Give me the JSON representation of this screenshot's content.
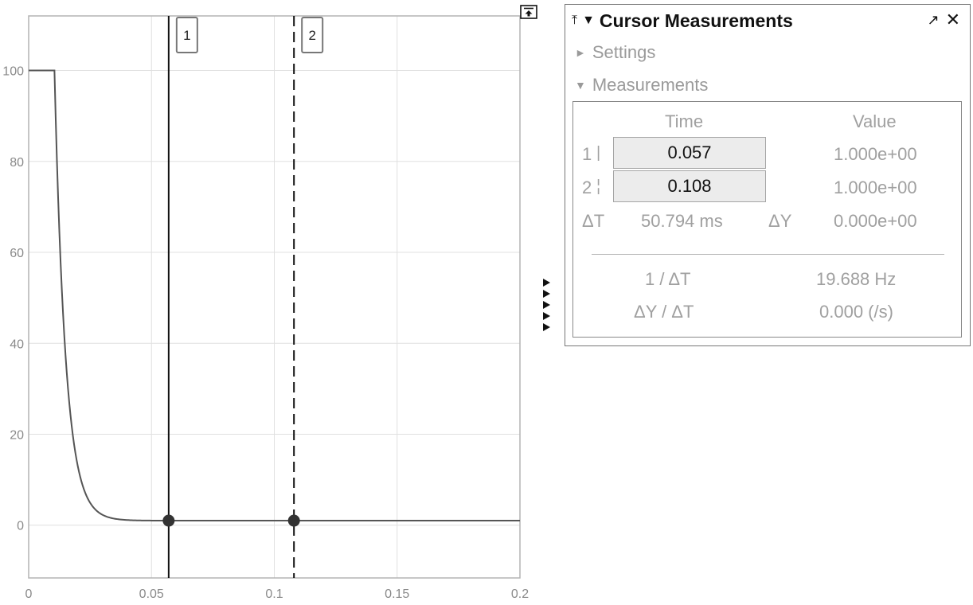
{
  "plot": {
    "x_ticks": [
      "0",
      "0.05",
      "0.1",
      "0.15",
      "0.2"
    ],
    "y_ticks": [
      "100",
      "80",
      "60",
      "40",
      "20",
      "0"
    ],
    "cursors": [
      {
        "label": "1",
        "time": 0.057,
        "value": 1,
        "style": "solid"
      },
      {
        "label": "2",
        "time": 0.108,
        "value": 1,
        "style": "dashed"
      }
    ],
    "signal": {
      "initial_value": 100,
      "step_time": 0.0105,
      "time_constant": 0.0045,
      "final_value": 1,
      "t_end": 0.2
    },
    "x_range": [
      0,
      0.2
    ],
    "y_range": [
      -11.6,
      112
    ],
    "grid": true,
    "colors": {
      "signal": "#555555",
      "cursor": "#111111",
      "grid": "#e0e0e0",
      "axes": "#b4b4b4"
    }
  },
  "icons": {
    "undock": "undock-icon",
    "side_arrows": "expand-arrow-icon"
  },
  "panel": {
    "title": "Cursor Measurements",
    "pin_icon": "⤒",
    "collapse_icon": "▼",
    "undock_icon": "↗",
    "close_icon": "✕",
    "settings_label": "Settings",
    "settings_icon": "►",
    "measurements_label": "Measurements",
    "measurements_icon": "▼",
    "table": {
      "time_header": "Time",
      "value_header": "Value",
      "rows": [
        {
          "num": "1",
          "marker": "|",
          "time": "0.057",
          "value": "1.000e+00"
        },
        {
          "num": "2",
          "marker": "¦",
          "time": "0.108",
          "value": "1.000e+00"
        }
      ],
      "dt_label": "ΔT",
      "dt_value": "50.794 ms",
      "dy_label": "ΔY",
      "dy_value": "0.000e+00",
      "inv_dt_label": "1 / ΔT",
      "inv_dt_value": "19.688 Hz",
      "slope_label": "ΔY / ΔT",
      "slope_value": "0.000 (/s)"
    }
  }
}
